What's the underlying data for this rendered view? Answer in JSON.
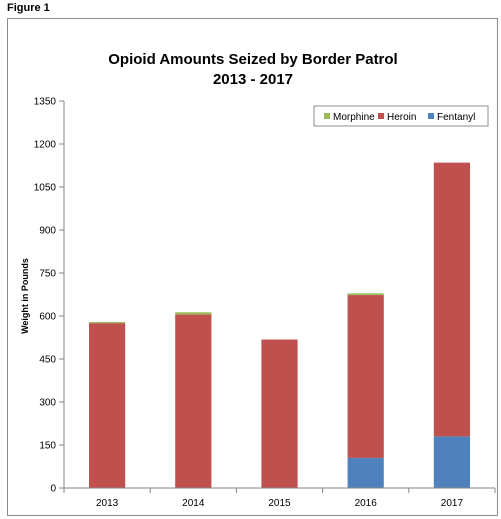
{
  "figure_label": "Figure 1",
  "chart_data": {
    "type": "bar",
    "stacked": true,
    "title": "Opioid Amounts Seized by Border Patrol",
    "subtitle": "2013 - 2017",
    "xlabel": "",
    "ylabel": "Weight in Pounds",
    "categories": [
      "2013",
      "2014",
      "2015",
      "2016",
      "2017"
    ],
    "ylim": [
      0,
      1350
    ],
    "yticks": [
      0,
      150,
      300,
      450,
      600,
      750,
      900,
      1050,
      1200,
      1350
    ],
    "grid": false,
    "legend_position": "top-right",
    "series": [
      {
        "name": "Fentanyl",
        "color": "#4f81bd",
        "values": [
          0,
          0,
          0,
          105,
          180
        ]
      },
      {
        "name": "Heroin",
        "color": "#c0504d",
        "values": [
          575,
          605,
          518,
          568,
          955
        ]
      },
      {
        "name": "Morphine",
        "color": "#9bbb59",
        "values": [
          4,
          8,
          0,
          6,
          0
        ]
      }
    ],
    "legend_order": [
      "Morphine",
      "Heroin",
      "Fentanyl"
    ]
  }
}
